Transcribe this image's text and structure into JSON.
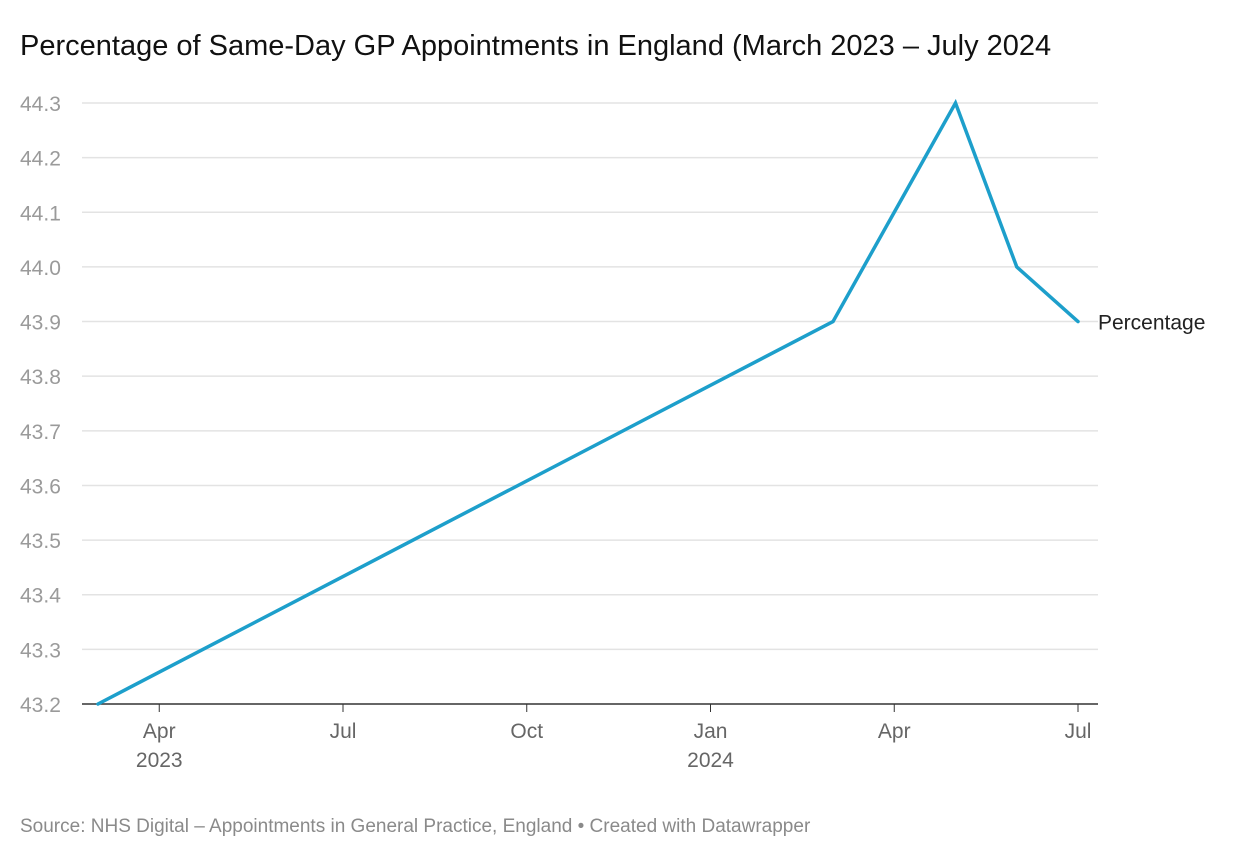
{
  "title": "Percentage of Same-Day GP Appointments in England (March 2023 – July 2024",
  "source": "Source: NHS Digital – Appointments in General Practice, England • Created with Datawrapper",
  "chart_data": {
    "type": "line",
    "title": "Percentage of Same-Day GP Appointments in England (March 2023 – July 2024",
    "xlabel": "",
    "ylabel": "",
    "x": [
      "2023-03",
      "2024-03",
      "2024-05",
      "2024-06",
      "2024-07"
    ],
    "series": [
      {
        "name": "Percentage",
        "color": "#1d9fcb",
        "values": [
          43.2,
          43.9,
          44.3,
          44.0,
          43.9
        ]
      }
    ],
    "xlim": [
      "2023-03",
      "2024-07"
    ],
    "ylim": [
      43.2,
      44.3
    ],
    "y_ticks": [
      "43.2",
      "43.3",
      "43.4",
      "43.5",
      "43.6",
      "43.7",
      "43.8",
      "43.9",
      "44.0",
      "44.1",
      "44.2",
      "44.3"
    ],
    "x_ticks": [
      {
        "date": "2023-04",
        "label": "Apr",
        "year": "2023"
      },
      {
        "date": "2023-07",
        "label": "Jul",
        "year": ""
      },
      {
        "date": "2023-10",
        "label": "Oct",
        "year": ""
      },
      {
        "date": "2024-01",
        "label": "Jan",
        "year": "2024"
      },
      {
        "date": "2024-04",
        "label": "Apr",
        "year": ""
      },
      {
        "date": "2024-07",
        "label": "Jul",
        "year": ""
      }
    ],
    "grid": true,
    "legend": "inline label at line end",
    "grid_color": "#e3e3e3",
    "axis_color": "#333333"
  }
}
